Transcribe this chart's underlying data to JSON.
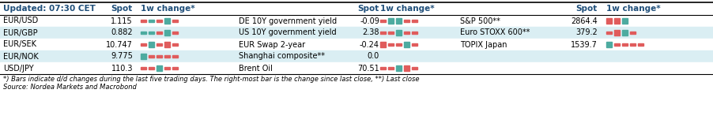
{
  "title": "Updated: 07:30 CET",
  "header_color": "#1F4E79",
  "light_blue_bg": "#DAEEF3",
  "white_bg": "#FFFFFF",
  "red": "#E05C5C",
  "green": "#4DABA0",
  "footnote1": "*) Bars indicate d/d changes during the last five trading days. The right-most bar is the change since last close, **) Last close",
  "footnote2": "Source: Nordea Markets and Macrobond",
  "left_rows": [
    {
      "label": "EUR/USD",
      "spot": "1.115",
      "bars": [
        [
          "s",
          "r"
        ],
        [
          "s",
          "g"
        ],
        [
          "s",
          "r"
        ],
        [
          "t",
          "g"
        ],
        [
          "s",
          "r"
        ]
      ]
    },
    {
      "label": "EUR/GBP",
      "spot": "0.882",
      "bars": [
        [
          "s",
          "g"
        ],
        [
          "s",
          "g"
        ],
        [
          "s",
          "r"
        ],
        [
          "t",
          "g"
        ],
        [
          "s",
          "r"
        ]
      ]
    },
    {
      "label": "EUR/SEK",
      "spot": "10.747",
      "bars": [
        [
          "s",
          "r"
        ],
        [
          "t",
          "g"
        ],
        [
          "s",
          "r"
        ],
        [
          "t",
          "r"
        ],
        [
          "s",
          "r"
        ]
      ]
    },
    {
      "label": "EUR/NOK",
      "spot": "9.775",
      "bars": [
        [
          "t",
          "g"
        ],
        [
          "s",
          "r"
        ],
        [
          "s",
          "r"
        ],
        [
          "s",
          "r"
        ],
        [
          "s",
          "r"
        ]
      ]
    },
    {
      "label": "USD/JPY",
      "spot": "110.3",
      "bars": [
        [
          "s",
          "r"
        ],
        [
          "s",
          "r"
        ],
        [
          "t",
          "g"
        ],
        [
          "s",
          "r"
        ],
        [
          "s",
          "r"
        ]
      ]
    }
  ],
  "mid_rows": [
    {
      "label": "DE 10Y government yield",
      "spot": "-0.09",
      "bars": [
        [
          "s",
          "r"
        ],
        [
          "t",
          "g"
        ],
        [
          "t",
          "g"
        ],
        [
          "s",
          "r"
        ],
        [
          "s",
          "r"
        ]
      ]
    },
    {
      "label": "US 10Y government yield",
      "spot": "2.38",
      "bars": [
        [
          "s",
          "r"
        ],
        [
          "s",
          "r"
        ],
        [
          "t",
          "g"
        ],
        [
          "s",
          "r"
        ],
        [
          "s",
          "r"
        ]
      ]
    },
    {
      "label": "EUR Swap 2-year",
      "spot": "-0.24",
      "bars": [
        [
          "t",
          "r"
        ],
        [
          "s",
          "r"
        ],
        [
          "s",
          "r"
        ],
        [
          "t",
          "g"
        ],
        [
          "s",
          "r"
        ]
      ]
    },
    {
      "label": "Shanghai composite**",
      "spot": "0.0",
      "bars": []
    },
    {
      "label": "Brent Oil",
      "spot": "70.51",
      "bars": [
        [
          "s",
          "r"
        ],
        [
          "s",
          "r"
        ],
        [
          "t",
          "g"
        ],
        [
          "t",
          "r"
        ],
        [
          "s",
          "r"
        ]
      ]
    }
  ],
  "right_rows": [
    {
      "label": "S&P 500**",
      "spot": "2864.4",
      "bars": [
        [
          "t",
          "r"
        ],
        [
          "t",
          "r"
        ],
        [
          "t",
          "g"
        ],
        [
          "",
          ""
        ],
        [
          "",
          ""
        ]
      ]
    },
    {
      "label": "Euro STOXX 600**",
      "spot": "379.2",
      "bars": [
        [
          "s",
          "r"
        ],
        [
          "t",
          "r"
        ],
        [
          "t",
          "g"
        ],
        [
          "s",
          "r"
        ],
        [
          "",
          ""
        ]
      ]
    },
    {
      "label": "TOPIX Japan",
      "spot": "1539.7",
      "bars": [
        [
          "t",
          "g"
        ],
        [
          "s",
          "r"
        ],
        [
          "s",
          "r"
        ],
        [
          "s",
          "r"
        ],
        [
          "s",
          "r"
        ]
      ]
    },
    {
      "label": "",
      "spot": "",
      "bars": []
    },
    {
      "label": "",
      "spot": "",
      "bars": []
    }
  ],
  "col_label1": 4,
  "col_spot1": 140,
  "col_bars1": 178,
  "col_label2": 302,
  "col_spot2": 452,
  "col_bars2": 481,
  "col_label3": 582,
  "col_spot3": 728,
  "col_bars3": 767
}
